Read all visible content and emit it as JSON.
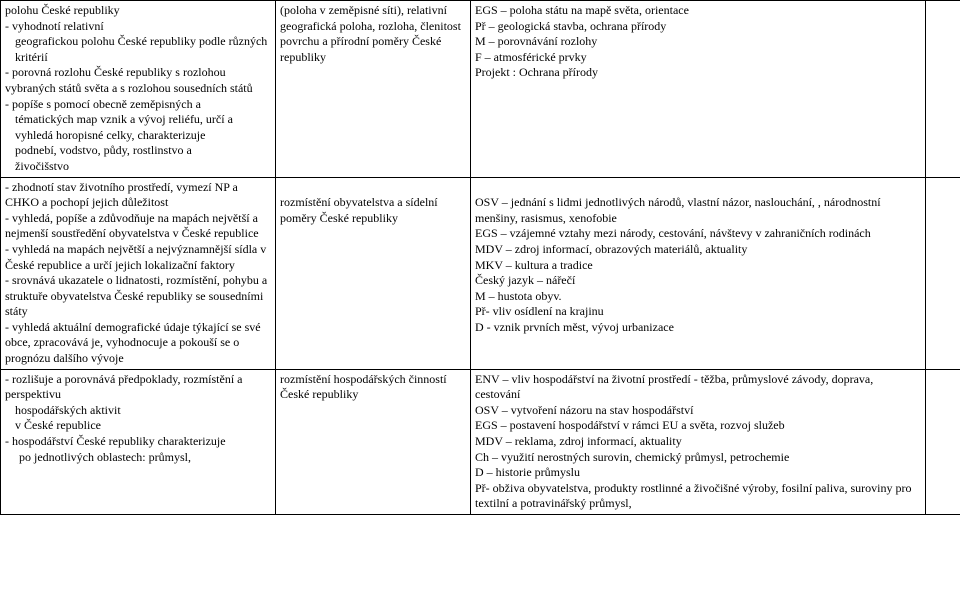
{
  "row1": {
    "c1": {
      "p1": "polohu České republiky",
      "p2": "-               vyhodnotí relativní",
      "p3": "geografickou polohu České republiky podle různých kritérií",
      "p4": "-                        porovná rozlohu České republiky s rozlohou vybraných států světa a s rozlohou sousedních států",
      "p5": "  - popíše s pomocí obecně zeměpisných a",
      "gap": " ",
      "p6": "tématických map vznik a vývoj reliéfu, určí a",
      "gap2": " ",
      "p7": "vyhledá horopisné celky, charakterizuje",
      "gap3": " ",
      "p8": "podnebí, vodstvo, půdy, rostlinstvo a",
      "gap4": " ",
      "p9": "živočišstvo"
    },
    "c2": {
      "p1": "(poloha v zeměpisné síti), relativní geografická poloha, rozloha, členitost povrchu a přírodní poměry České republiky"
    },
    "c3": {
      "p1": "EGS – poloha státu na mapě světa, orientace",
      "gap": " ",
      "p2": "Př – geologická stavba, ochrana přírody",
      "p3": "M – porovnávání rozlohy",
      "p4": "F – atmosférické prvky",
      "gap2": " ",
      "p5": "Projekt : Ochrana přírody"
    }
  },
  "row2": {
    "c1": {
      "p1": "- zhodnotí stav životního prostředí, vymezí NP a CHKO a pochopí jejich důležitost",
      "p2": "-                   vyhledá, popíše a zdůvodňuje na mapách největší a nejmenší soustředění obyvatelstva v České republice",
      "p3": "-                         vyhledá na mapách největší a nejvýznamnější sídla v České republice a určí jejich lokalizační faktory",
      "p4": "- srovnává ukazatele o lidnatosti,   rozmístění, pohybu a struktuře obyvatelstva České republiky se sousedními státy",
      "p5": "- vyhledá aktuální demografické údaje týkající se své obce, zpracovává je, vyhodnocuje a pokouší se o prognózu dalšího vývoje"
    },
    "c2": {
      "p1": "rozmístění obyvatelstva a sídelní poměry České republiky"
    },
    "c3": {
      "p1": "OSV – jednání s lidmi jednotlivých národů, vlastní názor, naslouchání, , národnostní menšiny, rasismus, xenofobie",
      "p2": "EGS – vzájemné vztahy mezi národy, cestování, návštevy v zahraničních rodinách",
      "p3": "MDV – zdroj informací, obrazových materiálů, aktuality",
      "p4": "MKV – kultura a tradice",
      "gap": " ",
      "p5": "Český jazyk – nářečí",
      "p6": "M – hustota obyv.",
      "p7": "Př- vliv osídlení na krajinu",
      "p8": "D - vznik prvních měst, vývoj urbanizace"
    }
  },
  "row3": {
    "c1": {
      "p1": "- rozlišuje a porovnává předpoklady, rozmístění a perspektivu",
      "p2": "hospodářských  aktivit",
      "p3": "v České republice",
      "p4": "  - hospodářství České republiky charakterizuje",
      "gap": " ",
      "p5": "po jednotlivých oblastech: průmysl,"
    },
    "c2": {
      "p1": "rozmístění hospodářských činností České republiky"
    },
    "c3": {
      "p1": "ENV – vliv hospodářství na životní prostředí - těžba, průmyslové závody, doprava, cestování",
      "p2": "OSV – vytvoření názoru na stav hospodářství",
      "p3": " EGS – postavení hospodářství v rámci EU a světa, rozvoj služeb",
      "p4": "MDV – reklama, zdroj informací, aktuality",
      "p5": "Ch – využití nerostných surovin, chemický průmysl, petrochemie",
      "p6": "D – historie průmyslu",
      "p7": "Př- obživa obyvatelstva, produkty rostlinné a živočišné výroby, fosilní paliva, suroviny pro textilní a potravinářský průmysl,"
    }
  }
}
